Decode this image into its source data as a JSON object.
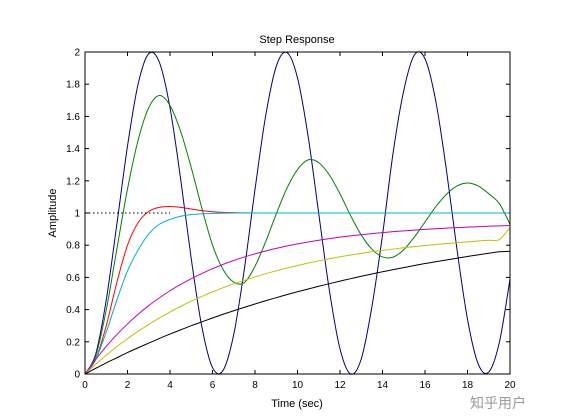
{
  "watermark": "知乎用户",
  "chart_data": {
    "type": "line",
    "title": "Step Response",
    "xlabel": "Time (sec)",
    "ylabel": "Amplitude",
    "xlim": [
      0,
      20
    ],
    "ylim": [
      0,
      2
    ],
    "xticks": [
      "0",
      "2",
      "4",
      "6",
      "8",
      "10",
      "12",
      "14",
      "16",
      "18",
      "20"
    ],
    "yticks": [
      "0",
      "0.2",
      "0.4",
      "0.6",
      "0.8",
      "1",
      "1.2",
      "1.4",
      "1.6",
      "1.8",
      "2"
    ],
    "reference_line": {
      "y": 1,
      "style": "dotted",
      "x_range": [
        0,
        4
      ],
      "color": "#000000"
    },
    "x": [
      0,
      0.5,
      1,
      1.5,
      2,
      2.5,
      3,
      3.5,
      4,
      4.5,
      5,
      5.5,
      6,
      6.5,
      7,
      7.5,
      8,
      8.5,
      9,
      9.5,
      10,
      10.5,
      11,
      11.5,
      12,
      12.5,
      13,
      13.5,
      14,
      14.5,
      15,
      15.5,
      16,
      16.5,
      17,
      17.5,
      18,
      18.5,
      19,
      19.5,
      20
    ],
    "series": [
      {
        "color": "#000080",
        "values": [
          0,
          0.122,
          0.46,
          0.931,
          1.416,
          1.801,
          1.99,
          1.936,
          1.654,
          1.211,
          0.716,
          0.292,
          0.04,
          0.023,
          0.246,
          0.653,
          1.146,
          1.602,
          1.911,
          1.997,
          1.839,
          1.476,
          0.996,
          0.519,
          0.156,
          0,
          0.093,
          0.417,
          0.863,
          1.375,
          1.76,
          1.982,
          1.958,
          1.7,
          1.275,
          0.778,
          0.34,
          0.063,
          0.012,
          0.197,
          0.59
        ]
      },
      {
        "color": "#008000",
        "values": [
          0,
          0.11,
          0.398,
          0.777,
          1.149,
          1.453,
          1.654,
          1.73,
          1.668,
          1.507,
          1.282,
          1.03,
          0.801,
          0.648,
          0.57,
          0.568,
          0.669,
          0.821,
          0.994,
          1.153,
          1.27,
          1.33,
          1.313,
          1.236,
          1.119,
          0.984,
          0.863,
          0.776,
          0.727,
          0.726,
          0.772,
          0.851,
          0.944,
          1.038,
          1.115,
          1.167,
          1.186,
          1.168,
          1.12,
          1.058,
          0.93
        ]
      },
      {
        "color": "#ff0000",
        "values": [
          0,
          0.09,
          0.3,
          0.57,
          0.8,
          0.94,
          1.01,
          1.035,
          1.04,
          1.035,
          1.025,
          1.015,
          1.008,
          1.004,
          1.002,
          1.001,
          1,
          1,
          1,
          1,
          1,
          1,
          1,
          1,
          1,
          1,
          1,
          1,
          1,
          1,
          1,
          1,
          1,
          1,
          1,
          1,
          1,
          1,
          1,
          1,
          1
        ]
      },
      {
        "color": "#00b0c0",
        "values": [
          0,
          0.09,
          0.26,
          0.46,
          0.64,
          0.77,
          0.87,
          0.93,
          0.96,
          0.98,
          0.99,
          0.995,
          0.998,
          0.999,
          1,
          1,
          1,
          1,
          1,
          1,
          1,
          1,
          1,
          1,
          1,
          1,
          1,
          1,
          1,
          1,
          1,
          1,
          1,
          1,
          1,
          1,
          1,
          1,
          1,
          1,
          1
        ]
      },
      {
        "color": "#c000c0",
        "values": [
          0,
          0.09,
          0.172,
          0.245,
          0.311,
          0.371,
          0.425,
          0.473,
          0.517,
          0.556,
          0.592,
          0.624,
          0.654,
          0.681,
          0.705,
          0.727,
          0.746,
          0.764,
          0.78,
          0.795,
          0.808,
          0.82,
          0.831,
          0.841,
          0.85,
          0.858,
          0.865,
          0.872,
          0.878,
          0.884,
          0.889,
          0.894,
          0.898,
          0.902,
          0.906,
          0.909,
          0.912,
          0.915,
          0.918,
          0.92,
          0.922
        ]
      },
      {
        "color": "#c0c000",
        "values": [
          0,
          0.06,
          0.117,
          0.17,
          0.219,
          0.265,
          0.308,
          0.348,
          0.385,
          0.42,
          0.452,
          0.482,
          0.51,
          0.536,
          0.56,
          0.582,
          0.603,
          0.623,
          0.641,
          0.658,
          0.674,
          0.689,
          0.703,
          0.716,
          0.728,
          0.739,
          0.749,
          0.759,
          0.768,
          0.776,
          0.784,
          0.791,
          0.798,
          0.804,
          0.81,
          0.816,
          0.821,
          0.826,
          0.831,
          0.835,
          0.91
        ]
      },
      {
        "color": "#000000",
        "values": [
          0,
          0.035,
          0.069,
          0.101,
          0.133,
          0.163,
          0.192,
          0.221,
          0.248,
          0.274,
          0.3,
          0.324,
          0.348,
          0.371,
          0.393,
          0.414,
          0.435,
          0.455,
          0.474,
          0.493,
          0.511,
          0.528,
          0.545,
          0.561,
          0.577,
          0.592,
          0.607,
          0.621,
          0.635,
          0.648,
          0.661,
          0.674,
          0.686,
          0.697,
          0.708,
          0.719,
          0.73,
          0.74,
          0.75,
          0.759,
          0.762
        ]
      }
    ]
  }
}
